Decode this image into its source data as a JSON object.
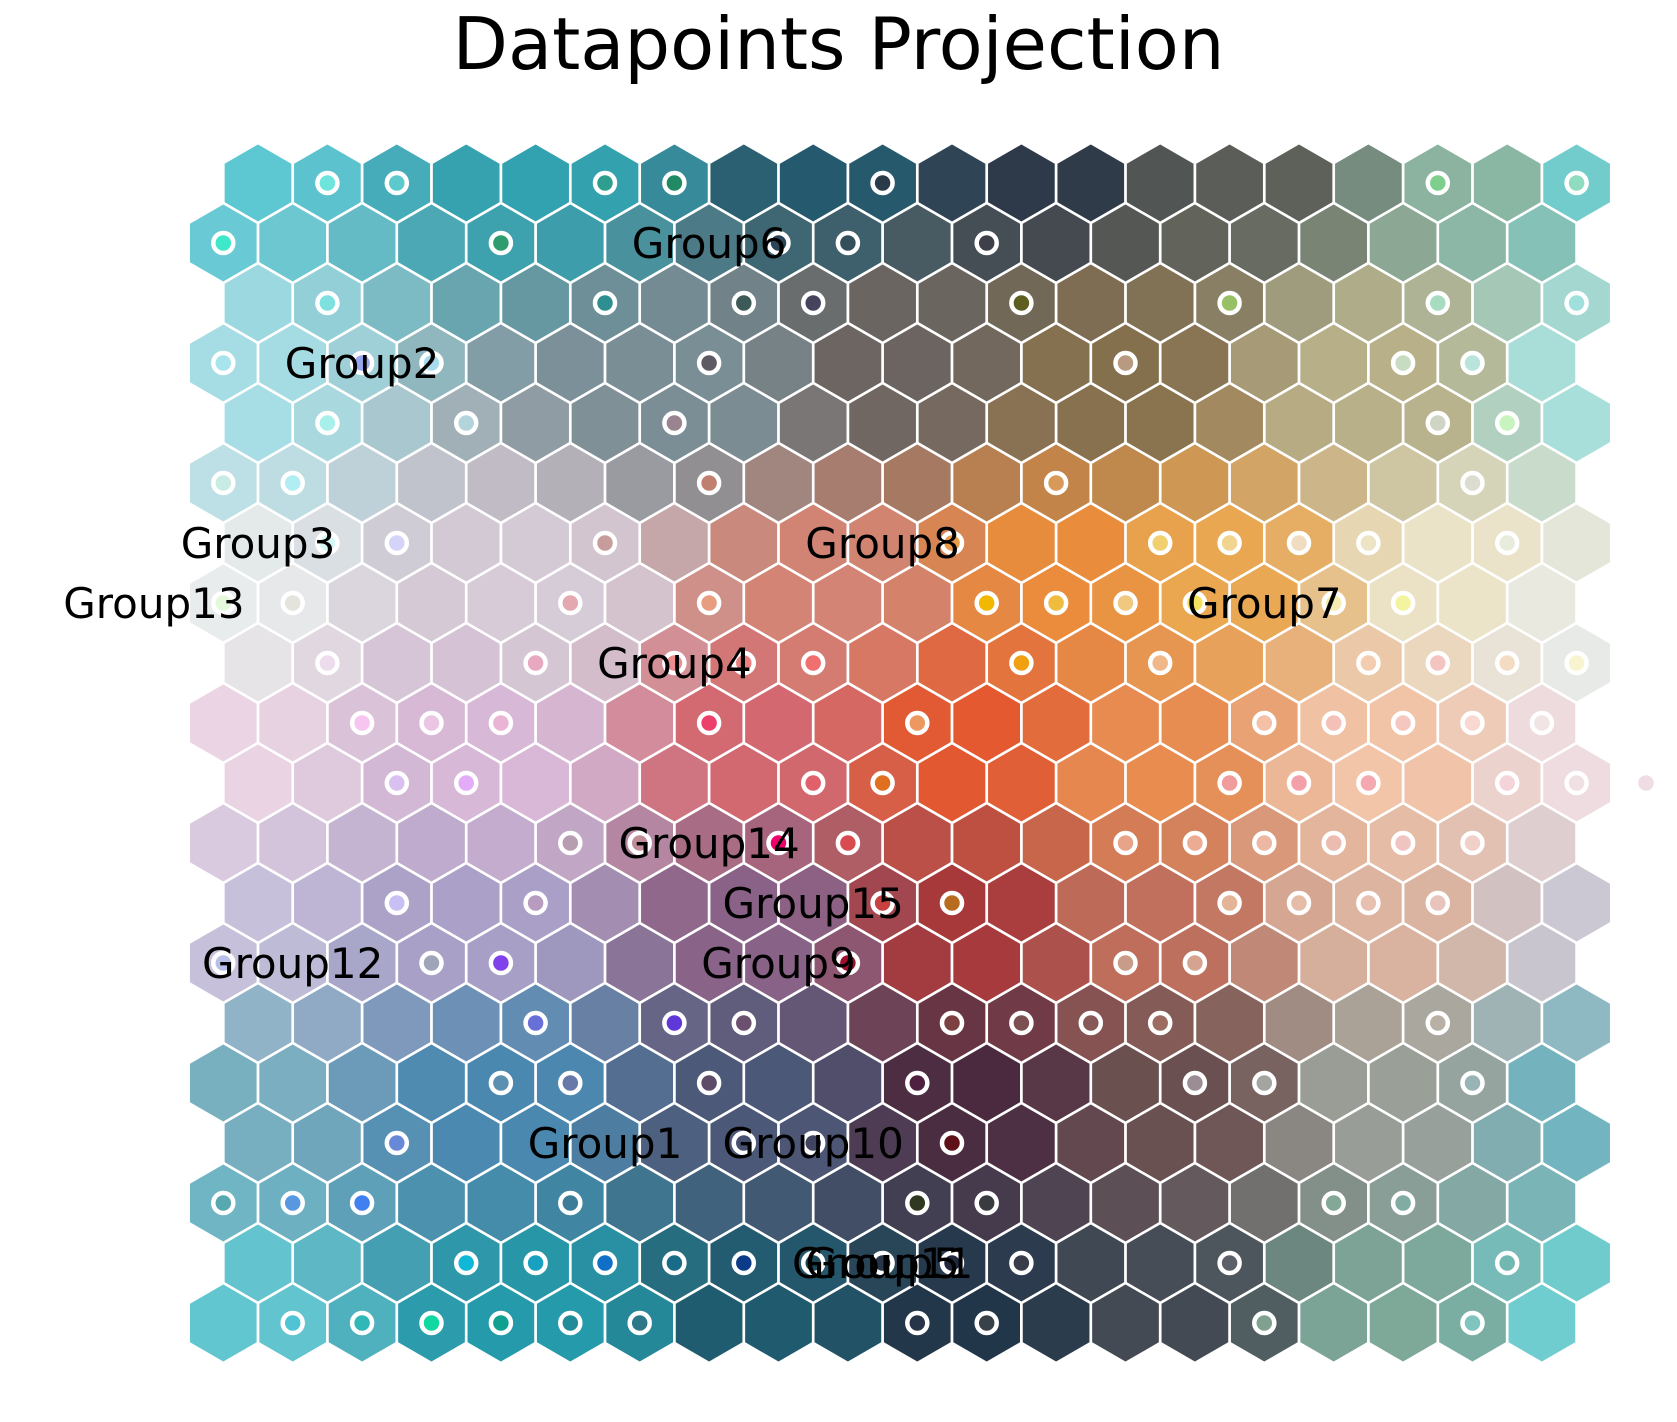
{
  "chart_data": {
    "type": "heatmap",
    "subtype": "hexagonal-som-map",
    "title": "Datapoints Projection",
    "grid": {
      "rows": 20,
      "cols": 20
    },
    "corner_colors": {
      "top-left": "#5cc7d2",
      "top-right": "#6ecfd2",
      "bottom-left": "#5cc7d2",
      "bottom-right": "#6ecfd2",
      "center-orange": "#e8702e",
      "center-dark-red": "#9a2f2f",
      "dark-navy": "#23324a"
    },
    "marker_color": "#ffffff",
    "labels": [
      {
        "text": "Group6",
        "row": 1,
        "col": 7
      },
      {
        "text": "Group2",
        "row": 3,
        "col": 2
      },
      {
        "text": "Group3",
        "row": 6,
        "col": 0
      },
      {
        "text": "Group13",
        "row": 7,
        "col": -1
      },
      {
        "text": "Group8",
        "row": 6,
        "col": 9
      },
      {
        "text": "Group7",
        "row": 7,
        "col": 15
      },
      {
        "text": "Group4",
        "row": 8,
        "col": 6
      },
      {
        "text": "Group14",
        "row": 11,
        "col": 7
      },
      {
        "text": "Group15",
        "row": 12,
        "col": 8
      },
      {
        "text": "Group12",
        "row": 13,
        "col": 1
      },
      {
        "text": "Group9",
        "row": 13,
        "col": 8
      },
      {
        "text": "Group1",
        "row": 16,
        "col": 5
      },
      {
        "text": "Group10",
        "row": 16,
        "col": 8
      },
      {
        "text": "Group5",
        "row": 18,
        "col": 9
      },
      {
        "text": "Group11",
        "row": 18,
        "col": 9
      }
    ],
    "points": [
      {
        "row": 0,
        "col": 1,
        "color": "#6ee5dc"
      },
      {
        "row": 0,
        "col": 2,
        "color": "#5cc9cc"
      },
      {
        "row": 0,
        "col": 5,
        "color": "#2e9e8e"
      },
      {
        "row": 0,
        "col": 6,
        "color": "#1f8a64"
      },
      {
        "row": 0,
        "col": 9,
        "color": "#2a3a48"
      },
      {
        "row": 0,
        "col": 17,
        "color": "#7ecf8e"
      },
      {
        "row": 0,
        "col": 19,
        "color": "#8fdcc0"
      },
      {
        "row": 1,
        "col": 0,
        "color": "#3fe8c8"
      },
      {
        "row": 1,
        "col": 4,
        "color": "#2f9c70"
      },
      {
        "row": 1,
        "col": 8,
        "color": "#2c4458"
      },
      {
        "row": 1,
        "col": 9,
        "color": "#33505a"
      },
      {
        "row": 1,
        "col": 11,
        "color": "#3d4048"
      },
      {
        "row": 2,
        "col": 1,
        "color": "#7fe0e0"
      },
      {
        "row": 2,
        "col": 5,
        "color": "#2f8f90"
      },
      {
        "row": 2,
        "col": 7,
        "color": "#3e5a58"
      },
      {
        "row": 2,
        "col": 8,
        "color": "#44445e"
      },
      {
        "row": 2,
        "col": 11,
        "color": "#5e5e20"
      },
      {
        "row": 2,
        "col": 14,
        "color": "#98c066"
      },
      {
        "row": 2,
        "col": 17,
        "color": "#a8dcc0"
      },
      {
        "row": 2,
        "col": 19,
        "color": "#9fe0dc"
      },
      {
        "row": 3,
        "col": 0,
        "color": "#a8e4ec"
      },
      {
        "row": 3,
        "col": 2,
        "color": "#98a8f0"
      },
      {
        "row": 3,
        "col": 3,
        "color": "#a8dcec"
      },
      {
        "row": 3,
        "col": 7,
        "color": "#5e5a64"
      },
      {
        "row": 3,
        "col": 13,
        "color": "#b89a80"
      },
      {
        "row": 3,
        "col": 17,
        "color": "#c8dcc4"
      },
      {
        "row": 3,
        "col": 18,
        "color": "#b8e4dc"
      },
      {
        "row": 4,
        "col": 1,
        "color": "#a8f0ec"
      },
      {
        "row": 4,
        "col": 3,
        "color": "#b4d4dc"
      },
      {
        "row": 4,
        "col": 6,
        "color": "#9a8490"
      },
      {
        "row": 4,
        "col": 17,
        "color": "#d0d4c4"
      },
      {
        "row": 4,
        "col": 18,
        "color": "#c8f4c0"
      },
      {
        "row": 5,
        "col": 0,
        "color": "#c8ece4"
      },
      {
        "row": 5,
        "col": 1,
        "color": "#b0eef4"
      },
      {
        "row": 5,
        "col": 7,
        "color": "#c08070"
      },
      {
        "row": 5,
        "col": 12,
        "color": "#d89a58"
      },
      {
        "row": 5,
        "col": 18,
        "color": "#dcdcd0"
      },
      {
        "row": 6,
        "col": 1,
        "color": "#d4f8f4"
      },
      {
        "row": 6,
        "col": 2,
        "color": "#d4d4f8"
      },
      {
        "row": 6,
        "col": 5,
        "color": "#c89c9c"
      },
      {
        "row": 6,
        "col": 10,
        "color": "#e89c48"
      },
      {
        "row": 6,
        "col": 13,
        "color": "#f0d070"
      },
      {
        "row": 6,
        "col": 14,
        "color": "#f0d490"
      },
      {
        "row": 6,
        "col": 15,
        "color": "#f0dcc0"
      },
      {
        "row": 6,
        "col": 16,
        "color": "#ece4c4"
      },
      {
        "row": 6,
        "col": 18,
        "color": "#e8ecdc"
      },
      {
        "row": 7,
        "col": 0,
        "color": "#e4f8dc"
      },
      {
        "row": 7,
        "col": 1,
        "color": "#e4e4dc"
      },
      {
        "row": 7,
        "col": 5,
        "color": "#e4a8b0"
      },
      {
        "row": 7,
        "col": 7,
        "color": "#e89c80"
      },
      {
        "row": 7,
        "col": 11,
        "color": "#f2b800"
      },
      {
        "row": 7,
        "col": 12,
        "color": "#f0bc40"
      },
      {
        "row": 7,
        "col": 13,
        "color": "#f0c880"
      },
      {
        "row": 7,
        "col": 14,
        "color": "#f4e060"
      },
      {
        "row": 7,
        "col": 16,
        "color": "#f4ecb0"
      },
      {
        "row": 7,
        "col": 17,
        "color": "#f4f4a0"
      },
      {
        "row": 8,
        "col": 1,
        "color": "#ecdcec"
      },
      {
        "row": 8,
        "col": 4,
        "color": "#e8a8c0"
      },
      {
        "row": 8,
        "col": 6,
        "color": "#ec8c8c"
      },
      {
        "row": 8,
        "col": 7,
        "color": "#ec8080"
      },
      {
        "row": 8,
        "col": 8,
        "color": "#f07070"
      },
      {
        "row": 8,
        "col": 11,
        "color": "#f0a010"
      },
      {
        "row": 8,
        "col": 13,
        "color": "#f0b888"
      },
      {
        "row": 8,
        "col": 16,
        "color": "#f4ccb0"
      },
      {
        "row": 8,
        "col": 17,
        "color": "#f4c4c0"
      },
      {
        "row": 8,
        "col": 18,
        "color": "#f4dcc4"
      },
      {
        "row": 8,
        "col": 19,
        "color": "#f8f4d0"
      },
      {
        "row": 8,
        "col": 20,
        "color": "#ffffff"
      },
      {
        "row": 9,
        "col": 2,
        "color": "#f8c4f0"
      },
      {
        "row": 9,
        "col": 3,
        "color": "#ecc4e4"
      },
      {
        "row": 9,
        "col": 4,
        "color": "#eab4d4"
      },
      {
        "row": 9,
        "col": 7,
        "color": "#ec406c"
      },
      {
        "row": 9,
        "col": 10,
        "color": "#ec9860"
      },
      {
        "row": 9,
        "col": 15,
        "color": "#f4c0a8"
      },
      {
        "row": 9,
        "col": 16,
        "color": "#f4c0b8"
      },
      {
        "row": 9,
        "col": 17,
        "color": "#f4c8c0"
      },
      {
        "row": 9,
        "col": 18,
        "color": "#f8d8d0"
      },
      {
        "row": 9,
        "col": 19,
        "color": "#f0e4e4"
      },
      {
        "row": 10,
        "col": 2,
        "color": "#d8c0f0"
      },
      {
        "row": 10,
        "col": 3,
        "color": "#e4acf8"
      },
      {
        "row": 10,
        "col": 8,
        "color": "#e0606c"
      },
      {
        "row": 10,
        "col": 9,
        "color": "#e07020"
      },
      {
        "row": 10,
        "col": 14,
        "color": "#f09c9c"
      },
      {
        "row": 10,
        "col": 15,
        "color": "#f4a0a8"
      },
      {
        "row": 10,
        "col": 16,
        "color": "#f4a8b0"
      },
      {
        "row": 10,
        "col": 18,
        "color": "#f4d4d8"
      },
      {
        "row": 10,
        "col": 19,
        "color": "#f0e0e4"
      },
      {
        "row": 10,
        "col": 20,
        "color": "#f0dce4"
      },
      {
        "row": 11,
        "col": 5,
        "color": "#b89cb0"
      },
      {
        "row": 11,
        "col": 6,
        "color": "#c08c98"
      },
      {
        "row": 11,
        "col": 8,
        "color": "#f0006c"
      },
      {
        "row": 11,
        "col": 9,
        "color": "#d84c50"
      },
      {
        "row": 11,
        "col": 13,
        "color": "#e8a488"
      },
      {
        "row": 11,
        "col": 14,
        "color": "#ecac94"
      },
      {
        "row": 11,
        "col": 15,
        "color": "#ecb8a4"
      },
      {
        "row": 11,
        "col": 16,
        "color": "#ecbcb0"
      },
      {
        "row": 11,
        "col": 17,
        "color": "#f0c4c0"
      },
      {
        "row": 11,
        "col": 18,
        "color": "#f0d0c8"
      },
      {
        "row": 12,
        "col": 2,
        "color": "#c8c0f4"
      },
      {
        "row": 12,
        "col": 4,
        "color": "#b89cc0"
      },
      {
        "row": 12,
        "col": 9,
        "color": "#c84040"
      },
      {
        "row": 12,
        "col": 10,
        "color": "#b86c20"
      },
      {
        "row": 12,
        "col": 14,
        "color": "#e4b498"
      },
      {
        "row": 12,
        "col": 15,
        "color": "#e4bca8"
      },
      {
        "row": 12,
        "col": 16,
        "color": "#e8c0b0"
      },
      {
        "row": 12,
        "col": 17,
        "color": "#e8c4bc"
      },
      {
        "row": 13,
        "col": 0,
        "color": "#b8c0e8"
      },
      {
        "row": 13,
        "col": 3,
        "color": "#a0a4b8"
      },
      {
        "row": 13,
        "col": 4,
        "color": "#8040ec"
      },
      {
        "row": 13,
        "col": 9,
        "color": "#a0102c"
      },
      {
        "row": 13,
        "col": 13,
        "color": "#c89c88"
      },
      {
        "row": 13,
        "col": 14,
        "color": "#d4a490"
      },
      {
        "row": 14,
        "col": 4,
        "color": "#6870d8"
      },
      {
        "row": 14,
        "col": 6,
        "color": "#6038d8"
      },
      {
        "row": 14,
        "col": 7,
        "color": "#6c5070"
      },
      {
        "row": 14,
        "col": 10,
        "color": "#7c4040"
      },
      {
        "row": 14,
        "col": 11,
        "color": "#7c5050"
      },
      {
        "row": 14,
        "col": 12,
        "color": "#885858"
      },
      {
        "row": 14,
        "col": 13,
        "color": "#9c6c60"
      },
      {
        "row": 14,
        "col": 17,
        "color": "#b8b0a4"
      },
      {
        "row": 15,
        "col": 4,
        "color": "#5c90b0"
      },
      {
        "row": 15,
        "col": 5,
        "color": "#6878a8"
      },
      {
        "row": 15,
        "col": 7,
        "color": "#5c4c68"
      },
      {
        "row": 15,
        "col": 10,
        "color": "#502040"
      },
      {
        "row": 15,
        "col": 14,
        "color": "#9c8c94"
      },
      {
        "row": 15,
        "col": 15,
        "color": "#a4a4a0"
      },
      {
        "row": 15,
        "col": 18,
        "color": "#98b4b4"
      },
      {
        "row": 16,
        "col": 2,
        "color": "#6888d8"
      },
      {
        "row": 16,
        "col": 7,
        "color": "#485070"
      },
      {
        "row": 16,
        "col": 8,
        "color": "#404460"
      },
      {
        "row": 16,
        "col": 10,
        "color": "#601018"
      },
      {
        "row": 17,
        "col": 0,
        "color": "#58a8b0"
      },
      {
        "row": 17,
        "col": 1,
        "color": "#5898e0"
      },
      {
        "row": 17,
        "col": 2,
        "color": "#4080f0"
      },
      {
        "row": 17,
        "col": 5,
        "color": "#3c7c98"
      },
      {
        "row": 17,
        "col": 10,
        "color": "#303820"
      },
      {
        "row": 17,
        "col": 11,
        "color": "#383c40"
      },
      {
        "row": 17,
        "col": 16,
        "color": "#84a898"
      },
      {
        "row": 17,
        "col": 17,
        "color": "#80aca4"
      },
      {
        "row": 18,
        "col": 3,
        "color": "#10b8d8"
      },
      {
        "row": 18,
        "col": 4,
        "color": "#18a0c0"
      },
      {
        "row": 18,
        "col": 5,
        "color": "#1070c8"
      },
      {
        "row": 18,
        "col": 6,
        "color": "#186c88"
      },
      {
        "row": 18,
        "col": 7,
        "color": "#0c3c88"
      },
      {
        "row": 18,
        "col": 8,
        "color": "#204858"
      },
      {
        "row": 18,
        "col": 9,
        "color": "#283448"
      },
      {
        "row": 18,
        "col": 10,
        "color": "#202840"
      },
      {
        "row": 18,
        "col": 11,
        "color": "#383c48"
      },
      {
        "row": 18,
        "col": 14,
        "color": "#5c6068"
      },
      {
        "row": 18,
        "col": 18,
        "color": "#70b8b0"
      },
      {
        "row": 19,
        "col": 1,
        "color": "#50c4d4"
      },
      {
        "row": 19,
        "col": 2,
        "color": "#30b8b8"
      },
      {
        "row": 19,
        "col": 3,
        "color": "#10d8a0"
      },
      {
        "row": 19,
        "col": 4,
        "color": "#10a090"
      },
      {
        "row": 19,
        "col": 5,
        "color": "#208c98"
      },
      {
        "row": 19,
        "col": 6,
        "color": "#2c7888"
      },
      {
        "row": 19,
        "col": 10,
        "color": "#283448"
      },
      {
        "row": 19,
        "col": 11,
        "color": "#384048"
      },
      {
        "row": 19,
        "col": 15,
        "color": "#80a090"
      },
      {
        "row": 19,
        "col": 18,
        "color": "#80c4c0"
      }
    ]
  }
}
